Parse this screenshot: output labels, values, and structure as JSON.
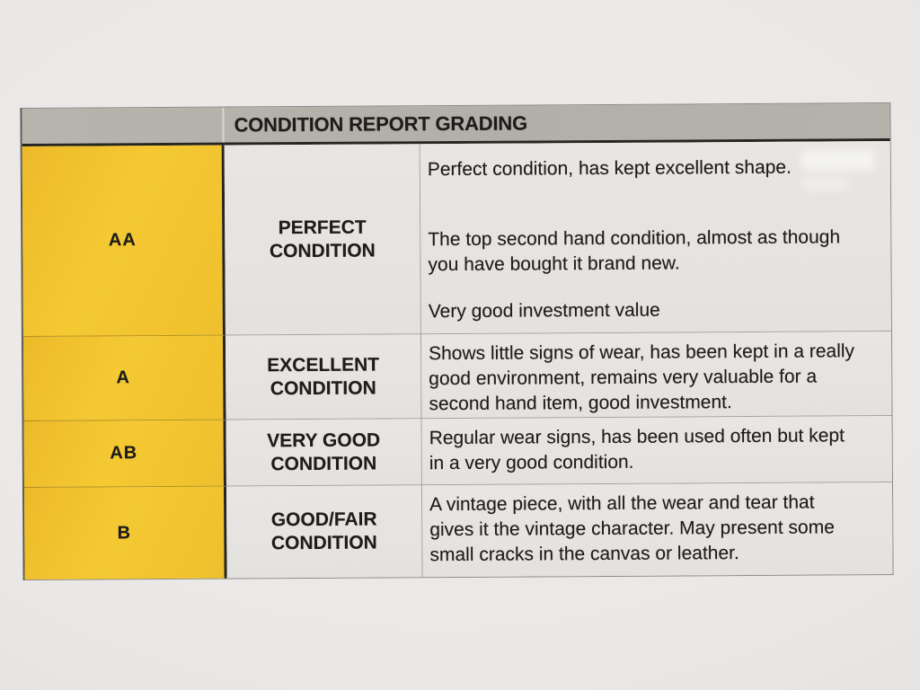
{
  "table": {
    "title": "CONDITION REPORT GRADING",
    "rows": [
      {
        "grade": "AA",
        "condition": "PERFECT CONDITION",
        "paragraphs": [
          "Perfect condition, has kept excellent shape.",
          "The top second hand condition, almost as though you have bought it brand new.",
          "Very good investment value"
        ]
      },
      {
        "grade": "A",
        "condition": "EXCELLENT CONDITION",
        "paragraphs": [
          "Shows little signs of wear, has been kept in a really good environment, remains very valuable for a second hand item, good investment."
        ]
      },
      {
        "grade": "AB",
        "condition": "VERY GOOD CONDITION",
        "paragraphs": [
          "Regular wear signs, has been used often but kept in a very good condition."
        ]
      },
      {
        "grade": "B",
        "condition": "GOOD/FAIR CONDITION",
        "paragraphs": [
          "A vintage piece, with all the wear and tear that gives it the vintage character. May present some small cracks in the canvas or leather."
        ]
      }
    ]
  },
  "colors": {
    "grade_yellow": "#F0C431",
    "header_gray": "#B3B0AA",
    "cell_background": "#E6E4E1",
    "border_dark": "#26251F",
    "text": "#1D1C1A"
  }
}
